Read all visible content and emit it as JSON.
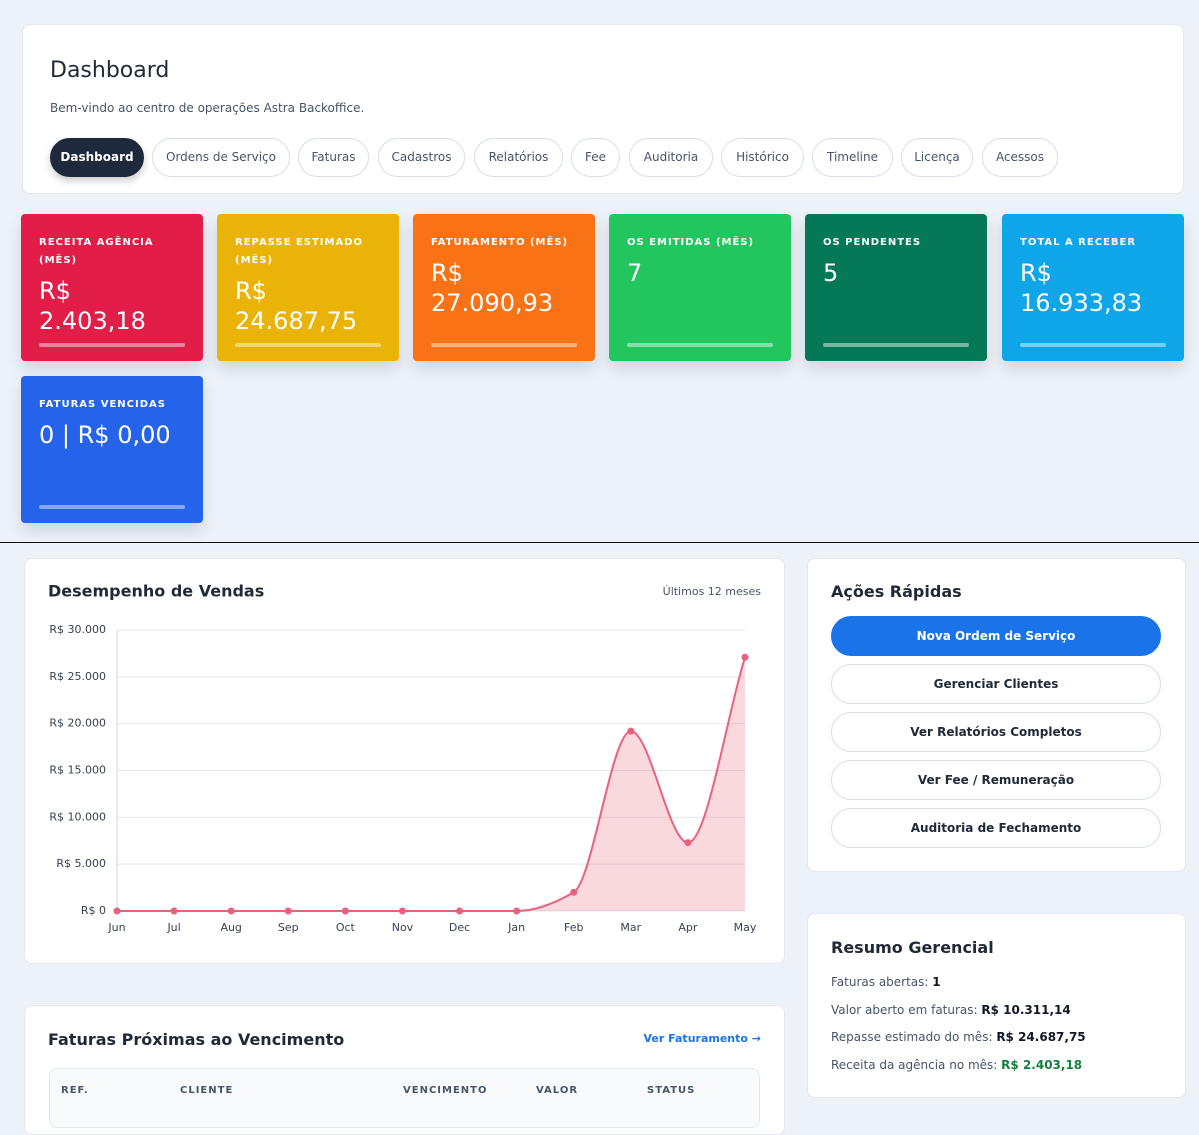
{
  "header": {
    "title": "Dashboard",
    "subtitle": "Bem-vindo ao centro de operações Astra Backoffice.",
    "tabs": [
      "Dashboard",
      "Ordens de Serviço",
      "Faturas",
      "Cadastros",
      "Relatórios",
      "Fee",
      "Auditoria",
      "Histórico",
      "Timeline",
      "Licença",
      "Acessos"
    ]
  },
  "kpis": [
    {
      "label": "RECEITA AGÊNCIA (MÊS)",
      "value": "R$ 2.403,18",
      "color": "#e11d48"
    },
    {
      "label": "REPASSE ESTIMADO (MÊS)",
      "value": "R$ 24.687,75",
      "color": "#eab308"
    },
    {
      "label": "FATURAMENTO (MÊS)",
      "value": "R$ 27.090,93",
      "color": "#f97316"
    },
    {
      "label": "OS EMITIDAS (MÊS)",
      "value": "7",
      "color": "#22c55e"
    },
    {
      "label": "OS PENDENTES",
      "value": "5",
      "color": "#047857"
    },
    {
      "label": "TOTAL A RECEBER",
      "value": "R$ 16.933,83",
      "color": "#0ea5e9"
    },
    {
      "label": "FATURAS VENCIDAS",
      "value": "0 | R$ 0,00",
      "color": "#2563eb"
    }
  ],
  "chart_data": {
    "type": "line",
    "title": "Desempenho de Vendas",
    "subtitle": "Últimos 12 meses",
    "categories": [
      "Jun",
      "Jul",
      "Aug",
      "Sep",
      "Oct",
      "Nov",
      "Dec",
      "Jan",
      "Feb",
      "Mar",
      "Apr",
      "May"
    ],
    "values": [
      0,
      0,
      0,
      0,
      0,
      0,
      0,
      0,
      2000,
      19200,
      7300,
      27090.93
    ],
    "color": "#e8627d",
    "ylim": [
      0,
      30000
    ],
    "yticks": [
      {
        "value": 0,
        "label": "R$ 0"
      },
      {
        "value": 5000,
        "label": "R$ 5.000"
      },
      {
        "value": 10000,
        "label": "R$ 10.000"
      },
      {
        "value": 15000,
        "label": "R$ 15.000"
      },
      {
        "value": 20000,
        "label": "R$ 20.000"
      },
      {
        "value": 25000,
        "label": "R$ 25.000"
      },
      {
        "value": 30000,
        "label": "R$ 30.000"
      }
    ],
    "grid": true
  },
  "quick_actions": {
    "title": "Ações Rápidas",
    "buttons": [
      "Nova Ordem de Serviço",
      "Gerenciar Clientes",
      "Ver Relatórios Completos",
      "Ver Fee / Remuneração",
      "Auditoria de Fechamento"
    ]
  },
  "summary": {
    "title": "Resumo Gerencial",
    "items": [
      {
        "label": "Faturas abertas:",
        "value": "1"
      },
      {
        "label": "Valor aberto em faturas:",
        "value": "R$ 10.311,14"
      },
      {
        "label": "Repasse estimado do mês:",
        "value": "R$ 24.687,75"
      },
      {
        "label": "Receita da agência no mês:",
        "value": "R$ 2.403,18"
      }
    ]
  },
  "invoices": {
    "title": "Faturas Próximas ao Vencimento",
    "link": "Ver Faturamento →",
    "columns": [
      "REF.",
      "CLIENTE",
      "VENCIMENTO",
      "VALOR",
      "STATUS"
    ]
  }
}
